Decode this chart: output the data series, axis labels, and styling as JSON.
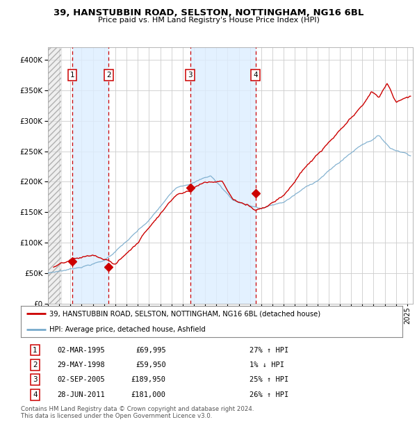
{
  "title": "39, HANSTUBBIN ROAD, SELSTON, NOTTINGHAM, NG16 6BL",
  "subtitle": "Price paid vs. HM Land Registry's House Price Index (HPI)",
  "xlim": [
    1993.0,
    2025.5
  ],
  "ylim": [
    0,
    420000
  ],
  "yticks": [
    0,
    50000,
    100000,
    150000,
    200000,
    250000,
    300000,
    350000,
    400000
  ],
  "ytick_labels": [
    "£0",
    "£50K",
    "£100K",
    "£150K",
    "£200K",
    "£250K",
    "£300K",
    "£350K",
    "£400K"
  ],
  "sale_dates": [
    1995.17,
    1998.41,
    2005.67,
    2011.49
  ],
  "sale_prices": [
    69995,
    59950,
    189950,
    181000
  ],
  "sale_labels": [
    "1",
    "2",
    "3",
    "4"
  ],
  "red_line_color": "#cc0000",
  "blue_line_color": "#77aacc",
  "dot_color": "#cc0000",
  "vline_color": "#cc0000",
  "shade_color": "#ddeeff",
  "grid_color": "#cccccc",
  "legend_line1": "39, HANSTUBBIN ROAD, SELSTON, NOTTINGHAM, NG16 6BL (detached house)",
  "legend_line2": "HPI: Average price, detached house, Ashfield",
  "table_rows": [
    [
      "1",
      "02-MAR-1995",
      "£69,995",
      "27% ↑ HPI"
    ],
    [
      "2",
      "29-MAY-1998",
      "£59,950",
      "1% ↓ HPI"
    ],
    [
      "3",
      "02-SEP-2005",
      "£189,950",
      "25% ↑ HPI"
    ],
    [
      "4",
      "28-JUN-2011",
      "£181,000",
      "26% ↑ HPI"
    ]
  ],
  "footnote": "Contains HM Land Registry data © Crown copyright and database right 2024.\nThis data is licensed under the Open Government Licence v3.0.",
  "background_color": "#ffffff"
}
